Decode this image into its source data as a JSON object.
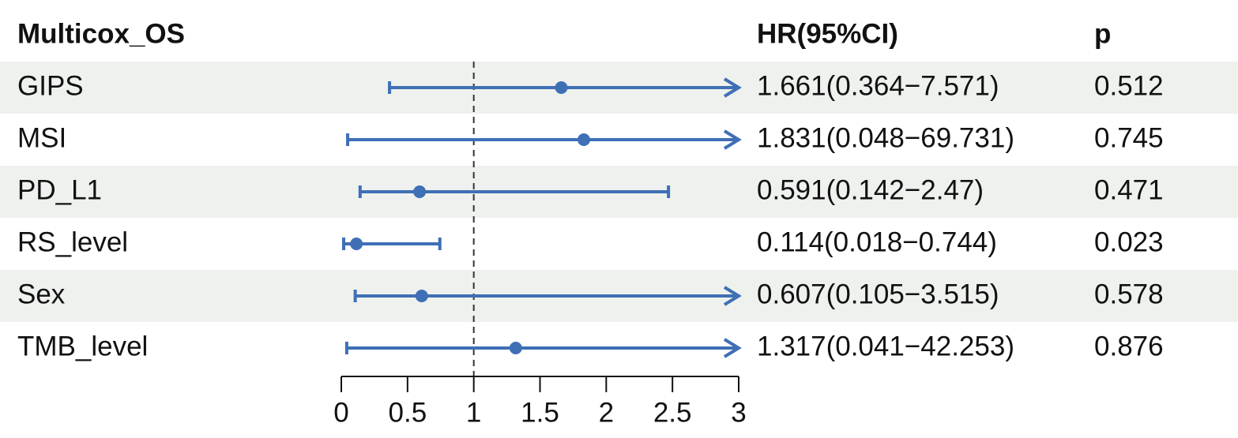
{
  "chart_data": {
    "type": "forest",
    "title": "Multicox_OS",
    "hr_header": "HR(95%CI)",
    "p_header": "p",
    "categories": [
      "GIPS",
      "MSI",
      "PD_L1",
      "RS_level",
      "Sex",
      "TMB_level"
    ],
    "hr": [
      1.661,
      1.831,
      0.591,
      0.114,
      0.607,
      1.317
    ],
    "lower": [
      0.364,
      0.048,
      0.142,
      0.018,
      0.105,
      0.041
    ],
    "upper": [
      7.571,
      69.731,
      2.47,
      0.744,
      3.515,
      42.253
    ],
    "value_labels": [
      "1.661(0.364−7.571)",
      "1.831(0.048−69.731)",
      "0.591(0.142−2.47)",
      "0.114(0.018−0.744)",
      "0.607(0.105−3.515)",
      "1.317(0.041−42.253)"
    ],
    "p_values": [
      0.512,
      0.745,
      0.471,
      0.023,
      0.578,
      0.876
    ],
    "xlim": [
      0,
      3
    ],
    "xticks": [
      0,
      0.5,
      1,
      1.5,
      2,
      2.5,
      3
    ],
    "ref_line": 1,
    "color": "#3f6fb5",
    "row_shade": "#eef1ee"
  }
}
